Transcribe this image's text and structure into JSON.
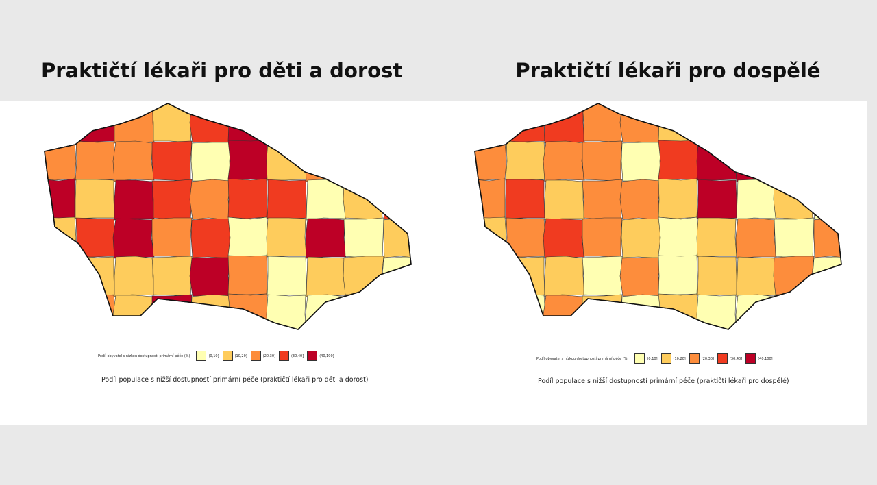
{
  "titles": {
    "left": "Praktičtí lékaři pro děti a dorost",
    "right": "Praktičtí lékaři pro dospělé"
  },
  "legend": {
    "title": "Podíl obyvatel s nízkou dostupností primární péče (%)",
    "classes": [
      {
        "label": "(0,10]",
        "color": "#ffffb2"
      },
      {
        "label": "(10,20]",
        "color": "#fecc5c"
      },
      {
        "label": "(20,30]",
        "color": "#fd8d3c"
      },
      {
        "label": "(30,40]",
        "color": "#f03b20"
      },
      {
        "label": "(40,100]",
        "color": "#bd0026"
      }
    ]
  },
  "captions": {
    "left": "Podíl populace s nižší dostupností primární péče (praktičtí lékaři pro děti a dorost)",
    "right": "Podíl populace s nižší dostupností primární péče (praktičtí lékaři pro dospělé)"
  },
  "maps": {
    "left": {
      "classes": [
        3,
        4,
        2,
        1,
        3,
        4,
        3,
        4,
        1,
        4,
        2,
        2,
        2,
        3,
        0,
        4,
        1,
        2,
        3,
        3,
        4,
        1,
        4,
        3,
        2,
        3,
        3,
        0,
        1,
        3,
        1,
        3,
        4,
        2,
        3,
        0,
        1,
        4,
        0,
        1,
        1,
        1,
        1,
        1,
        4,
        2,
        0,
        1,
        1,
        0,
        2,
        2,
        1,
        4,
        1,
        2,
        0,
        0,
        1,
        0
      ]
    },
    "right": {
      "classes": [
        2,
        3,
        3,
        2,
        2,
        1,
        3,
        1,
        0,
        3,
        2,
        1,
        2,
        2,
        0,
        3,
        4,
        4,
        2,
        1,
        2,
        3,
        1,
        2,
        2,
        1,
        4,
        0,
        1,
        0,
        1,
        2,
        3,
        2,
        1,
        0,
        1,
        2,
        0,
        2,
        1,
        1,
        1,
        0,
        2,
        0,
        1,
        1,
        2,
        0,
        0,
        0,
        2,
        1,
        0,
        1,
        0,
        0,
        2,
        1
      ]
    }
  }
}
